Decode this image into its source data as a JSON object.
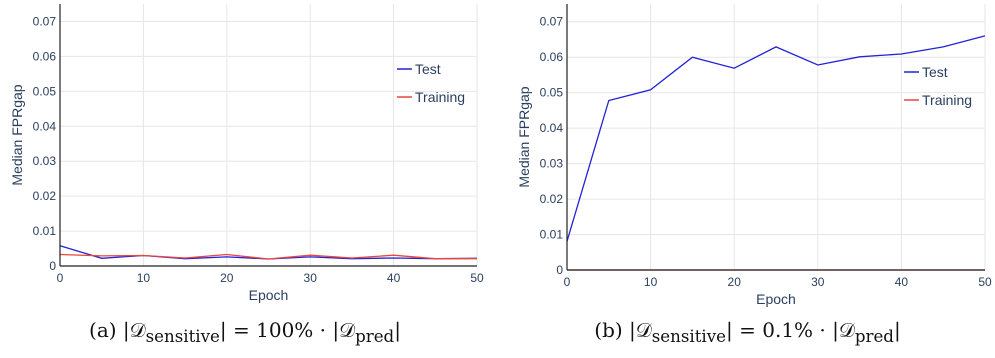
{
  "colors": {
    "test": "#2323d6",
    "training": "#e8473c",
    "grid": "#e6e6e6",
    "axis": "#2a3f5f"
  },
  "chart_data": [
    {
      "type": "line",
      "caption": "(a) |𝒟sensitive| = 100% · |𝒟pred|",
      "caption_parts": {
        "prefix": "(a) |𝒟",
        "sub1": "sensitive",
        "middle": "| = 100% · |𝒟",
        "sub2": "pred",
        "suffix": "|"
      },
      "xlabel": "Epoch",
      "ylabel": "Median FPRgap",
      "xlim": [
        0,
        50
      ],
      "ylim": [
        0,
        0.075
      ],
      "xticks": [
        "0",
        "10",
        "20",
        "30",
        "40",
        "50"
      ],
      "yticks": [
        "0",
        "0.01",
        "0.02",
        "0.03",
        "0.04",
        "0.05",
        "0.06",
        "0.07"
      ],
      "grid": true,
      "legend_placement": "right",
      "x": [
        0,
        5,
        10,
        15,
        20,
        25,
        30,
        35,
        40,
        45,
        50
      ],
      "series": [
        {
          "name": "Test",
          "color": "#2323d6",
          "values": [
            0.0058,
            0.0022,
            0.003,
            0.0021,
            0.0026,
            0.002,
            0.0026,
            0.0021,
            0.0023,
            0.0021,
            0.0022
          ]
        },
        {
          "name": "Training",
          "color": "#e8473c",
          "values": [
            0.0033,
            0.0029,
            0.003,
            0.0023,
            0.0033,
            0.002,
            0.0031,
            0.0023,
            0.0031,
            0.0021,
            0.0021
          ]
        }
      ]
    },
    {
      "type": "line",
      "caption": "(b) |𝒟sensitive| = 0.1% · |𝒟pred|",
      "caption_parts": {
        "prefix": "(b) |𝒟",
        "sub1": "sensitive",
        "middle": "| = 0.1% · |𝒟",
        "sub2": "pred",
        "suffix": "|"
      },
      "xlabel": "Epoch",
      "ylabel": "Median FPRgap",
      "xlim": [
        0,
        50
      ],
      "ylim": [
        0,
        0.075
      ],
      "xticks": [
        "0",
        "10",
        "20",
        "30",
        "40",
        "50"
      ],
      "yticks": [
        "0",
        "0.01",
        "0.02",
        "0.03",
        "0.04",
        "0.05",
        "0.06",
        "0.07"
      ],
      "grid": true,
      "legend_placement": "right",
      "x": [
        0,
        5,
        10,
        15,
        20,
        25,
        30,
        35,
        40,
        45,
        50
      ],
      "series": [
        {
          "name": "Test",
          "color": "#2323d6",
          "values": [
            0.0081,
            0.0478,
            0.0508,
            0.06,
            0.0569,
            0.0629,
            0.0578,
            0.0601,
            0.0609,
            0.0629,
            0.066
          ]
        },
        {
          "name": "Training",
          "color": "#e8473c",
          "values": [
            0,
            0,
            0,
            0,
            0,
            0,
            0,
            0,
            0,
            0,
            0
          ]
        }
      ]
    }
  ]
}
